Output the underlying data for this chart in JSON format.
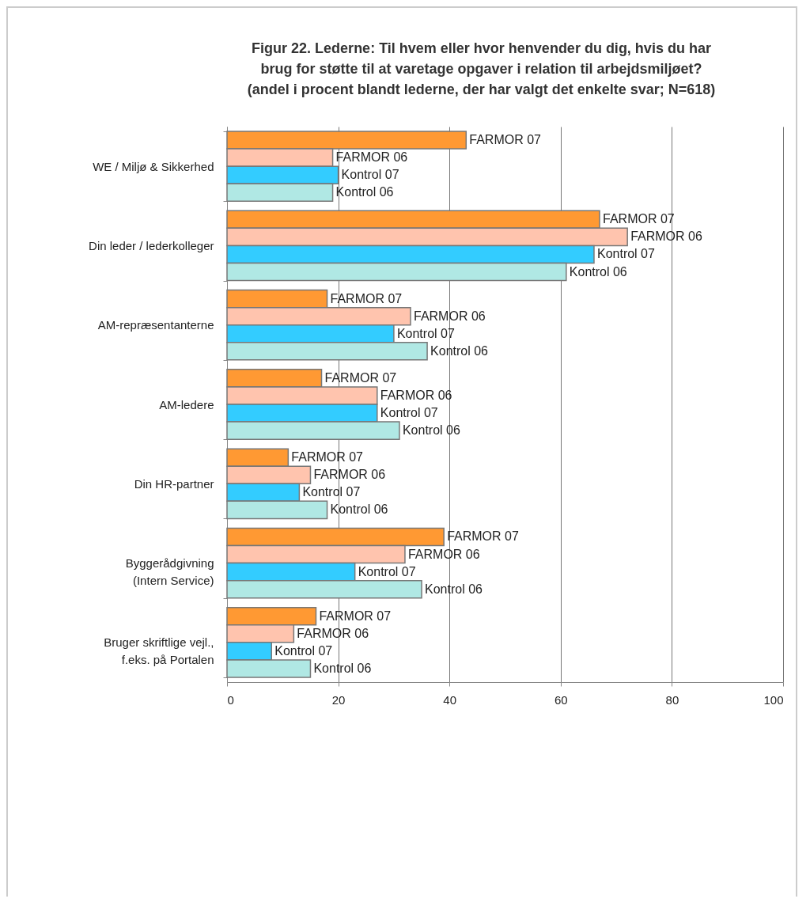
{
  "chart_data": {
    "type": "bar",
    "orientation": "horizontal",
    "title": "Figur 22. Lederne: Til hvem eller hvor henvender du dig, hvis du har\nbrug for støtte til at varetage opgaver i relation til arbejdsmiljøet?\n(andel i procent blandt lederne, der har valgt det enkelte svar; N=618)",
    "categories": [
      "WE / Miljø & Sikkerhed",
      "Din leder / lederkolleger",
      "AM-repræsentanterne",
      "AM-ledere",
      "Din HR-partner",
      "Byggerådgivning\n(Intern Service)",
      "Bruger skriftlige vejl.,\nf.eks. på Portalen"
    ],
    "series": [
      {
        "name": "FARMOR 07",
        "color": "#ff9933",
        "values": [
          43,
          67,
          18,
          17,
          11,
          39,
          16
        ]
      },
      {
        "name": "FARMOR 06",
        "color": "#ffc4ae",
        "values": [
          19,
          72,
          33,
          27,
          15,
          32,
          12
        ]
      },
      {
        "name": "Kontrol 07",
        "color": "#33ccff",
        "values": [
          20,
          66,
          30,
          27,
          13,
          23,
          8
        ]
      },
      {
        "name": "Kontrol 06",
        "color": "#b0e8e4",
        "values": [
          19,
          61,
          36,
          31,
          18,
          35,
          15
        ]
      }
    ],
    "xlim": [
      0,
      100
    ],
    "xticks": [
      0,
      20,
      40,
      60,
      80,
      100
    ],
    "grid": "x"
  }
}
